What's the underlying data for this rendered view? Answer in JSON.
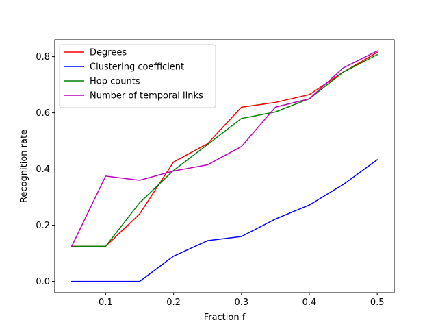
{
  "chart_data": {
    "type": "line",
    "title": "",
    "xlabel": "Fraction f",
    "ylabel": "Recognition rate",
    "xlim": [
      0.025,
      0.525
    ],
    "ylim": [
      -0.04,
      0.86
    ],
    "x_ticks": [
      0.1,
      0.2,
      0.3,
      0.4,
      0.5
    ],
    "x_tick_labels": [
      "0.1",
      "0.2",
      "0.3",
      "0.4",
      "0.5"
    ],
    "y_ticks": [
      0.0,
      0.2,
      0.4,
      0.6,
      0.8
    ],
    "y_tick_labels": [
      "0.0",
      "0.2",
      "0.4",
      "0.6",
      "0.8"
    ],
    "grid": false,
    "legend_position": "upper-left",
    "x": [
      0.05,
      0.1,
      0.15,
      0.2,
      0.25,
      0.3,
      0.35,
      0.4,
      0.45,
      0.5
    ],
    "series": [
      {
        "name": "Degrees",
        "color": "#ff0000",
        "values": [
          0.125,
          0.125,
          0.24,
          0.425,
          0.49,
          0.62,
          0.637,
          0.665,
          0.745,
          0.815
        ]
      },
      {
        "name": "Clustering coefficient",
        "color": "#0000ff",
        "values": [
          0.0,
          0.0,
          0.0,
          0.09,
          0.145,
          0.16,
          0.222,
          0.272,
          0.345,
          0.433
        ]
      },
      {
        "name": "Hop counts",
        "color": "#008000",
        "values": [
          0.125,
          0.125,
          0.28,
          0.395,
          0.487,
          0.58,
          0.603,
          0.65,
          0.745,
          0.807
        ]
      },
      {
        "name": "Number of temporal links",
        "color": "#bf00bf",
        "values": [
          0.125,
          0.375,
          0.36,
          0.393,
          0.415,
          0.48,
          0.62,
          0.65,
          0.76,
          0.82
        ]
      }
    ]
  }
}
